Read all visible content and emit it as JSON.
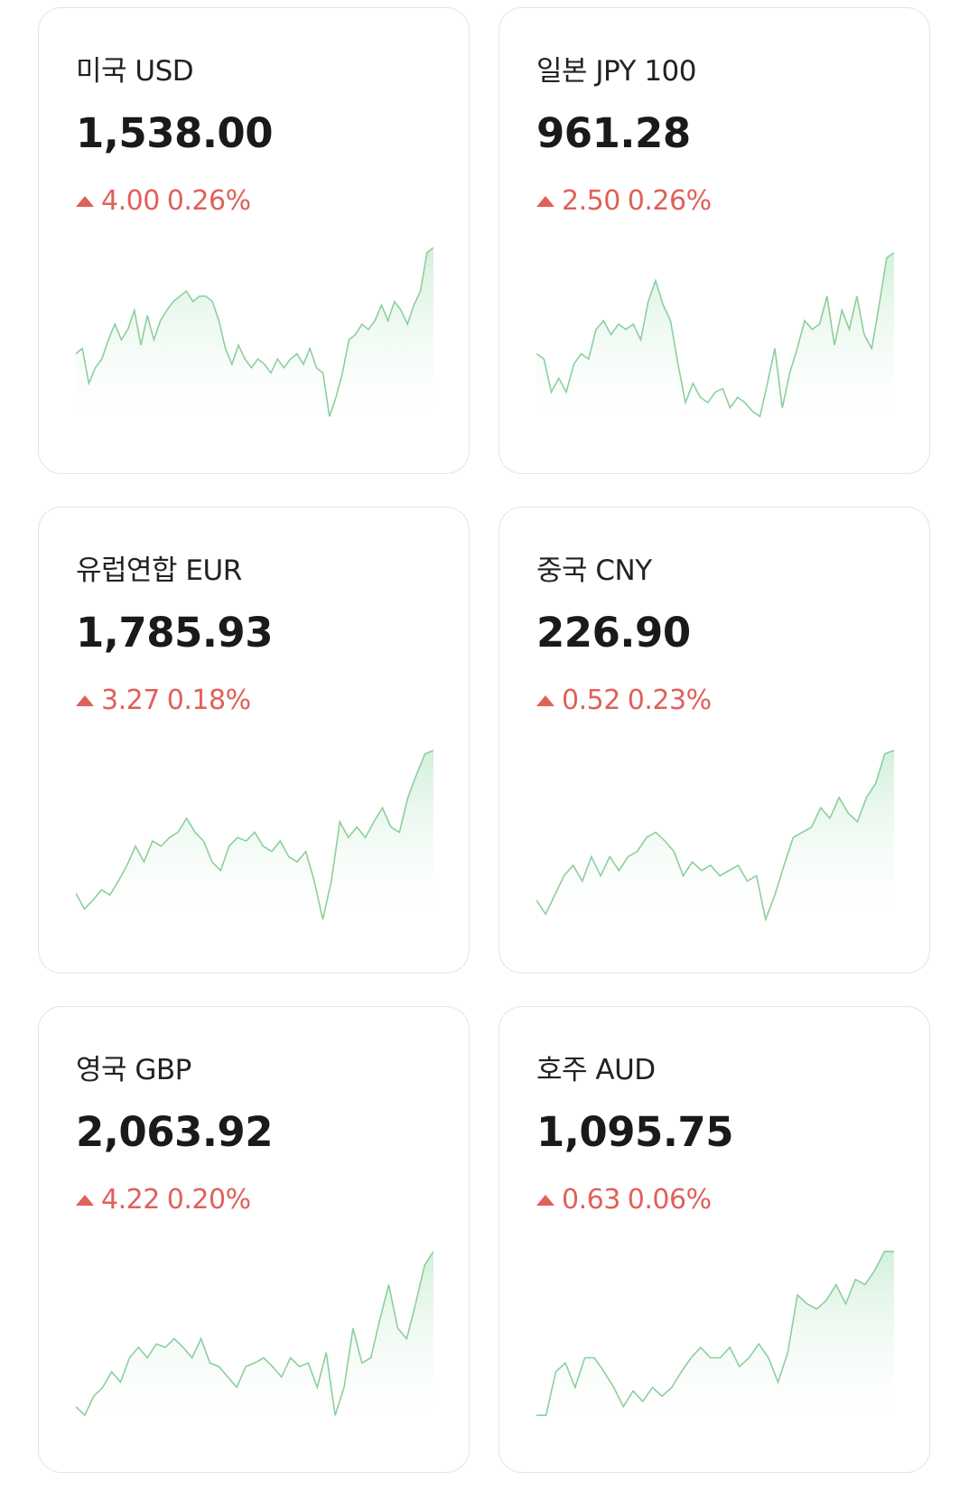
{
  "sparkline_ylim": [
    0,
    100
  ],
  "cards": [
    {
      "name": "미국 USD",
      "rate": "1,538.00",
      "change": "4.00",
      "change_pct": "0.26%",
      "spark": [
        39,
        42,
        22,
        31,
        36,
        47,
        56,
        47,
        53,
        64,
        44,
        61,
        47,
        58,
        64,
        69,
        72,
        75,
        69,
        72,
        72,
        69,
        58,
        42,
        33,
        44,
        36,
        31,
        36,
        33,
        28,
        36,
        31,
        36,
        39,
        33,
        42,
        31,
        28,
        3,
        14,
        28,
        47,
        50,
        56,
        53,
        58,
        67,
        58,
        69,
        64,
        56,
        67,
        75,
        97,
        100
      ]
    },
    {
      "name": "일본 JPY 100",
      "rate": "961.28",
      "change": "2.50",
      "change_pct": "0.26%",
      "spark": [
        39,
        36,
        17,
        25,
        17,
        33,
        39,
        36,
        53,
        58,
        50,
        56,
        53,
        56,
        47,
        69,
        81,
        67,
        58,
        33,
        11,
        22,
        14,
        11,
        17,
        19,
        8,
        14,
        11,
        6,
        3,
        22,
        42,
        8,
        28,
        42,
        58,
        53,
        56,
        72,
        44,
        64,
        53,
        72,
        50,
        42,
        67,
        94,
        97
      ]
    },
    {
      "name": "유럽연합 EUR",
      "rate": "1,785.93",
      "change": "3.27",
      "change_pct": "0.18%",
      "spark": [
        16,
        7,
        12,
        18,
        15,
        23,
        32,
        43,
        34,
        46,
        43,
        48,
        51,
        59,
        51,
        46,
        34,
        29,
        43,
        48,
        46,
        51,
        43,
        40,
        46,
        37,
        34,
        40,
        23,
        1,
        23,
        57,
        48,
        54,
        48,
        57,
        65,
        54,
        51,
        71,
        84,
        96,
        98
      ]
    },
    {
      "name": "중국 CNY",
      "rate": "226.90",
      "change": "0.52",
      "change_pct": "0.23%",
      "spark": [
        12,
        4,
        15,
        26,
        32,
        23,
        37,
        26,
        37,
        29,
        37,
        40,
        48,
        51,
        46,
        40,
        26,
        34,
        29,
        32,
        26,
        29,
        32,
        23,
        26,
        1,
        15,
        32,
        48,
        51,
        54,
        65,
        59,
        71,
        62,
        57,
        71,
        79,
        96,
        98
      ]
    },
    {
      "name": "영국 GBP",
      "rate": "2,063.92",
      "change": "4.22",
      "change_pct": "0.20%",
      "spark": [
        8,
        3,
        14,
        19,
        28,
        22,
        36,
        42,
        36,
        44,
        42,
        47,
        42,
        36,
        47,
        33,
        31,
        25,
        19,
        31,
        33,
        36,
        31,
        25,
        36,
        31,
        33,
        19,
        39,
        3,
        19,
        53,
        33,
        36,
        58,
        78,
        53,
        47,
        67,
        89,
        97
      ]
    },
    {
      "name": "호주 AUD",
      "rate": "1,095.75",
      "change": "0.63",
      "change_pct": "0.06%",
      "spark": [
        3,
        3,
        28,
        33,
        19,
        36,
        36,
        28,
        19,
        8,
        17,
        11,
        19,
        14,
        19,
        28,
        36,
        42,
        36,
        36,
        42,
        31,
        36,
        44,
        36,
        22,
        39,
        72,
        67,
        64,
        69,
        78,
        67,
        81,
        78,
        86,
        97,
        97
      ]
    }
  ]
}
